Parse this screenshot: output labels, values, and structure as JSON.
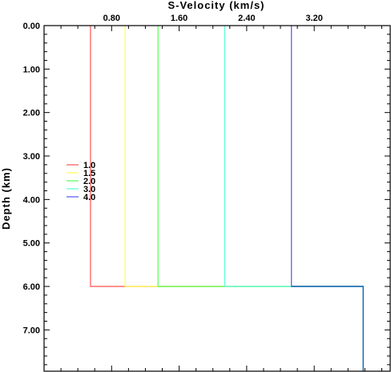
{
  "chart_data": {
    "type": "line",
    "title": "",
    "xlabel": "S-Velocity (km/s)",
    "ylabel": "Depth (km)",
    "xlim": [
      0.0,
      4.1
    ],
    "ylim": [
      0.0,
      7.95
    ],
    "x_ticks": [
      "0.80",
      "1.60",
      "2.40",
      "3.20"
    ],
    "x_tick_values": [
      0.8,
      1.6,
      2.4,
      3.2
    ],
    "y_ticks": [
      "0.00",
      "1.00",
      "2.00",
      "3.00",
      "4.00",
      "5.00",
      "6.00",
      "7.00"
    ],
    "y_tick_values": [
      0,
      1,
      2,
      3,
      4,
      5,
      6,
      7
    ],
    "legend_position": "middle-left",
    "grid": false,
    "series": [
      {
        "name": "1.0",
        "color": "#ff5f5f",
        "points": [
          [
            0.55,
            0
          ],
          [
            0.55,
            6.0
          ],
          [
            3.78,
            6.0
          ],
          [
            3.78,
            7.95
          ]
        ]
      },
      {
        "name": "1.5",
        "color": "#ffff5f",
        "points": [
          [
            0.96,
            0
          ],
          [
            0.96,
            6.0
          ],
          [
            3.78,
            6.0
          ],
          [
            3.78,
            7.95
          ]
        ]
      },
      {
        "name": "2.0",
        "color": "#5fff5f",
        "points": [
          [
            1.35,
            0
          ],
          [
            1.35,
            6.0
          ],
          [
            3.78,
            6.0
          ],
          [
            3.78,
            7.95
          ]
        ]
      },
      {
        "name": "3.0",
        "color": "#5fffd8",
        "points": [
          [
            2.14,
            0
          ],
          [
            2.14,
            6.0
          ],
          [
            3.78,
            6.0
          ],
          [
            3.78,
            7.95
          ]
        ]
      },
      {
        "name": "4.0",
        "color": "#5f5fff",
        "points": [
          [
            2.93,
            0
          ],
          [
            2.93,
            6.0
          ],
          [
            3.78,
            6.0
          ],
          [
            3.78,
            7.95
          ]
        ]
      }
    ],
    "final_segment_color": "#1e6fb4"
  }
}
